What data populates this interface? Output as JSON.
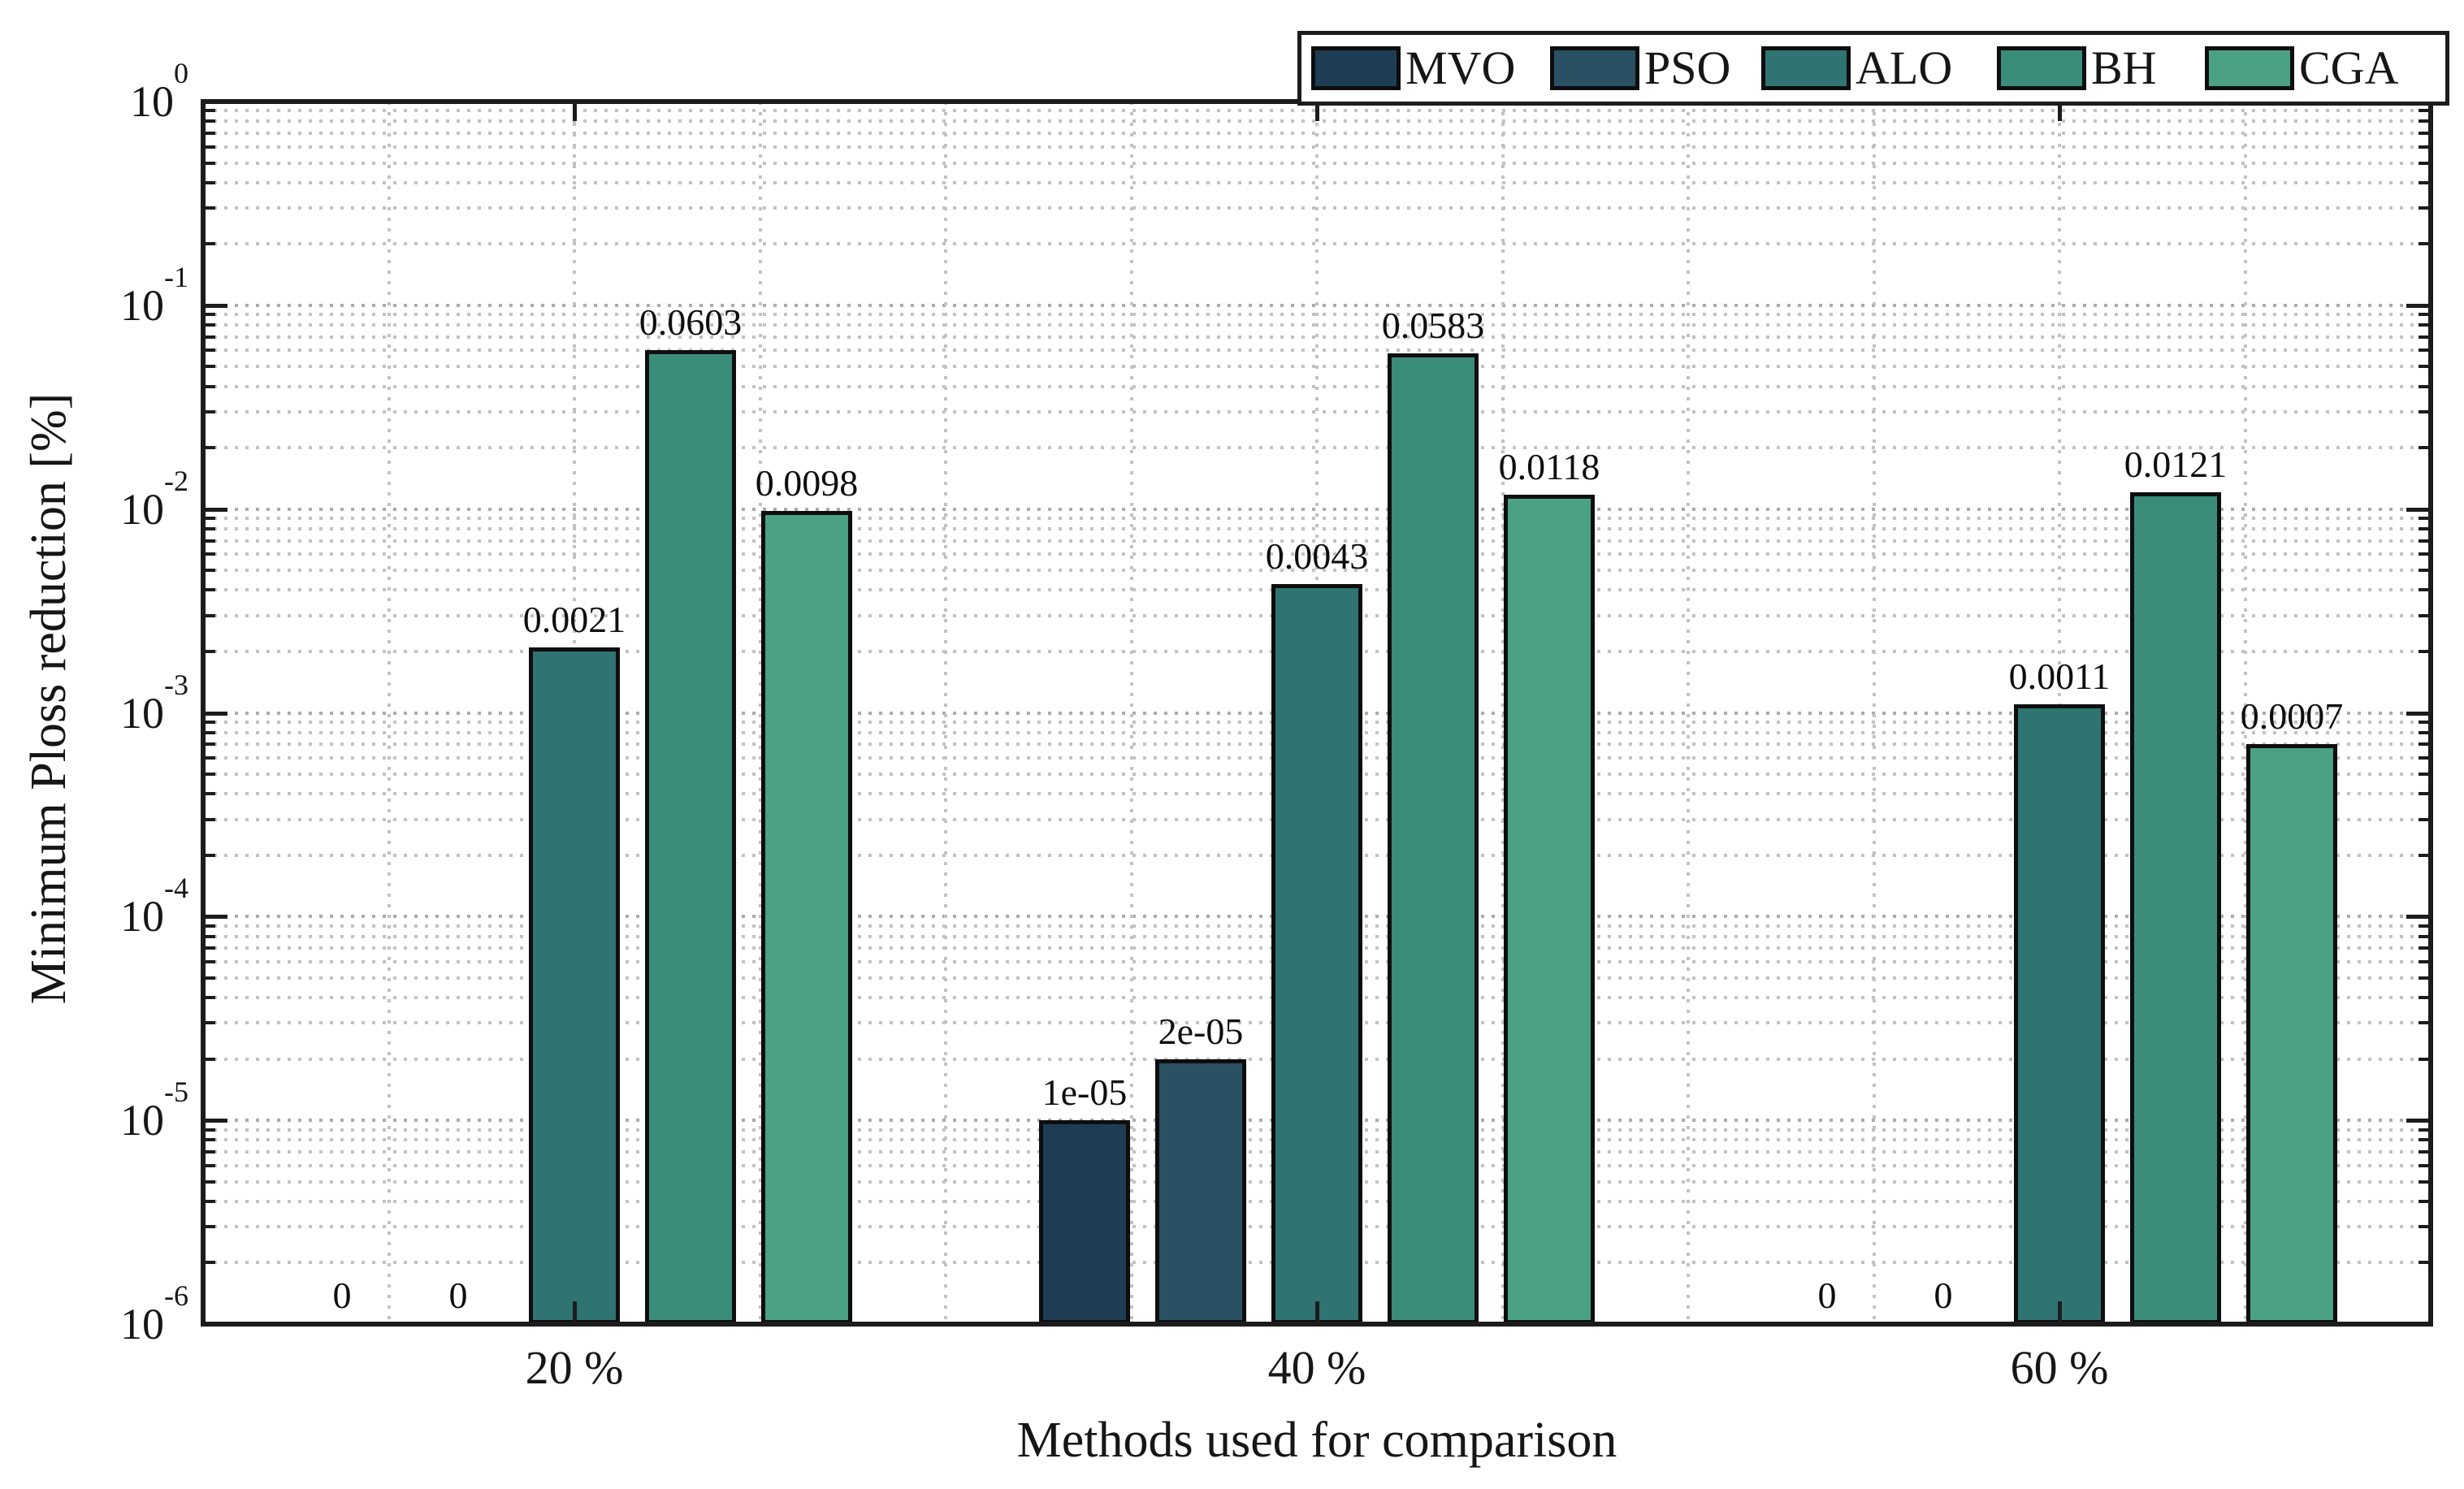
{
  "y_axis": {
    "label": "Minimum Ploss reduction [%]",
    "tick_base": "10",
    "tick_exponents": [
      "0",
      "-1",
      "-2",
      "-3",
      "-4",
      "-5",
      "-6"
    ]
  },
  "x_axis": {
    "label": "Methods used for comparison",
    "tick_labels": [
      "20 %",
      "40 %",
      "60 %"
    ]
  },
  "legend": {
    "entries": [
      "MVO",
      "PSO",
      "ALO",
      "BH",
      "CGA"
    ]
  },
  "colors": {
    "MVO": "#1e3d54",
    "PSO": "#2a5064",
    "ALO": "#2f7471",
    "BH": "#3b8d7b",
    "CGA": "#4aa183",
    "axis": "#1c1c1c",
    "grid_major": "#ababab",
    "grid_minor": "#c2c2c2"
  },
  "chart_data": {
    "type": "bar",
    "categories": [
      "20 %",
      "40 %",
      "60 %"
    ],
    "series": [
      {
        "name": "MVO",
        "color": "#1e3d54",
        "values": [
          0,
          1e-05,
          0
        ],
        "labels": [
          "0",
          "1e-05",
          "0"
        ]
      },
      {
        "name": "PSO",
        "color": "#2a5064",
        "values": [
          0,
          2e-05,
          0
        ],
        "labels": [
          "0",
          "2e-05",
          "0"
        ]
      },
      {
        "name": "ALO",
        "color": "#2f7471",
        "values": [
          0.0021,
          0.0043,
          0.0011
        ],
        "labels": [
          "0.0021",
          "0.0043",
          "0.0011"
        ]
      },
      {
        "name": "BH",
        "color": "#3b8d7b",
        "values": [
          0.0603,
          0.0583,
          0.0121
        ],
        "labels": [
          "0.0603",
          "0.0583",
          "0.0121"
        ]
      },
      {
        "name": "CGA",
        "color": "#4aa183",
        "values": [
          0.0098,
          0.0118,
          0.0007
        ],
        "labels": [
          "0.0098",
          "0.0118",
          "0.0007"
        ]
      }
    ],
    "title": "",
    "xlabel": "Methods used for comparison",
    "ylabel": "Minimum Ploss reduction [%]",
    "yscale": "log",
    "ylim": [
      1e-06,
      1
    ],
    "grid": true,
    "minor_grid": true,
    "legend_position": "top-right"
  }
}
